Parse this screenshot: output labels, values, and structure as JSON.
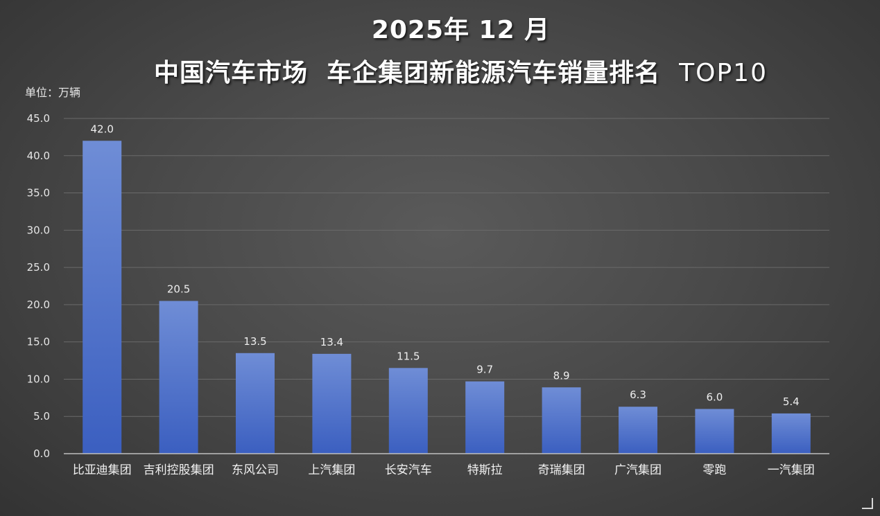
{
  "title": {
    "line1": "2025年 12 月",
    "line2_main": "中国汽车市场  车企集团新能源汽车销量排名  ",
    "line2_suffix": "TOP10"
  },
  "unit_label": "单位：万辆",
  "chart_data": {
    "type": "bar",
    "title": "2025年 12 月 中国汽车市场 车企集团新能源汽车销量排名 TOP10",
    "ylabel": "单位：万辆",
    "xlabel": "",
    "ylim": [
      0,
      45
    ],
    "yticks": [
      "0.0",
      "5.0",
      "10.0",
      "15.0",
      "20.0",
      "25.0",
      "30.0",
      "35.0",
      "40.0",
      "45.0"
    ],
    "ytick_values": [
      0,
      5,
      10,
      15,
      20,
      25,
      30,
      35,
      40,
      45
    ],
    "grid": true,
    "categories": [
      "比亚迪集团",
      "吉利控股集团",
      "东风公司",
      "上汽集团",
      "长安汽车",
      "特斯拉",
      "奇瑞集团",
      "广汽集团",
      "零跑",
      "一汽集团"
    ],
    "values": [
      42.0,
      20.5,
      13.5,
      13.4,
      11.5,
      9.7,
      8.9,
      6.3,
      6.0,
      5.4
    ],
    "value_labels": [
      "42.0",
      "20.5",
      "13.5",
      "13.4",
      "11.5",
      "9.7",
      "8.9",
      "6.3",
      "6.0",
      "5.4"
    ],
    "colors": {
      "bar_top": "#6f8dd6",
      "bar_bottom": "#3b5fc0",
      "grid": "#6a6a6a",
      "axis": "#bfbfbf"
    }
  }
}
